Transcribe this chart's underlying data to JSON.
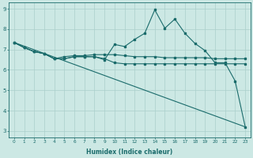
{
  "xlabel": "Humidex (Indice chaleur)",
  "xlim": [
    -0.5,
    23.5
  ],
  "ylim": [
    2.7,
    9.3
  ],
  "yticks": [
    3,
    4,
    5,
    6,
    7,
    8,
    9
  ],
  "xticks": [
    0,
    1,
    2,
    3,
    4,
    5,
    6,
    7,
    8,
    9,
    10,
    11,
    12,
    13,
    14,
    15,
    16,
    17,
    18,
    19,
    20,
    21,
    22,
    23
  ],
  "bg_color": "#cce8e4",
  "grid_color": "#aacfcb",
  "line_color": "#1a6b6b",
  "line1_x": [
    0,
    1,
    2,
    3,
    4,
    5,
    6,
    7,
    8,
    9,
    10,
    11,
    12,
    13,
    14,
    15,
    16,
    17,
    18,
    19,
    20,
    21,
    22,
    23
  ],
  "line1_y": [
    7.35,
    7.1,
    6.9,
    6.8,
    6.55,
    6.65,
    6.7,
    6.7,
    6.75,
    6.75,
    6.75,
    6.7,
    6.65,
    6.65,
    6.65,
    6.6,
    6.6,
    6.6,
    6.6,
    6.6,
    6.55,
    6.55,
    6.55,
    6.55
  ],
  "line2_x": [
    0,
    1,
    2,
    3,
    4,
    5,
    6,
    7,
    8,
    9,
    10,
    11,
    12,
    13,
    14,
    15,
    16,
    17,
    18,
    19,
    20,
    21,
    22,
    23
  ],
  "line2_y": [
    7.35,
    7.1,
    6.9,
    6.8,
    6.55,
    6.55,
    6.65,
    6.65,
    6.65,
    6.55,
    6.35,
    6.3,
    6.3,
    6.3,
    6.3,
    6.3,
    6.3,
    6.3,
    6.3,
    6.3,
    6.3,
    6.3,
    6.3,
    6.3
  ],
  "line3_x": [
    0,
    1,
    2,
    3,
    4,
    5,
    6,
    7,
    8,
    9,
    10,
    11,
    12,
    13,
    14,
    15,
    16,
    17,
    18,
    19,
    20,
    21,
    22,
    23
  ],
  "line3_y": [
    7.35,
    7.1,
    6.9,
    6.8,
    6.55,
    6.55,
    6.65,
    6.65,
    6.65,
    6.5,
    7.25,
    7.15,
    7.5,
    7.8,
    8.95,
    8.05,
    8.5,
    7.8,
    7.3,
    6.95,
    6.35,
    6.35,
    5.45,
    3.2
  ],
  "line4_x": [
    0,
    23
  ],
  "line4_y": [
    7.35,
    3.2
  ]
}
